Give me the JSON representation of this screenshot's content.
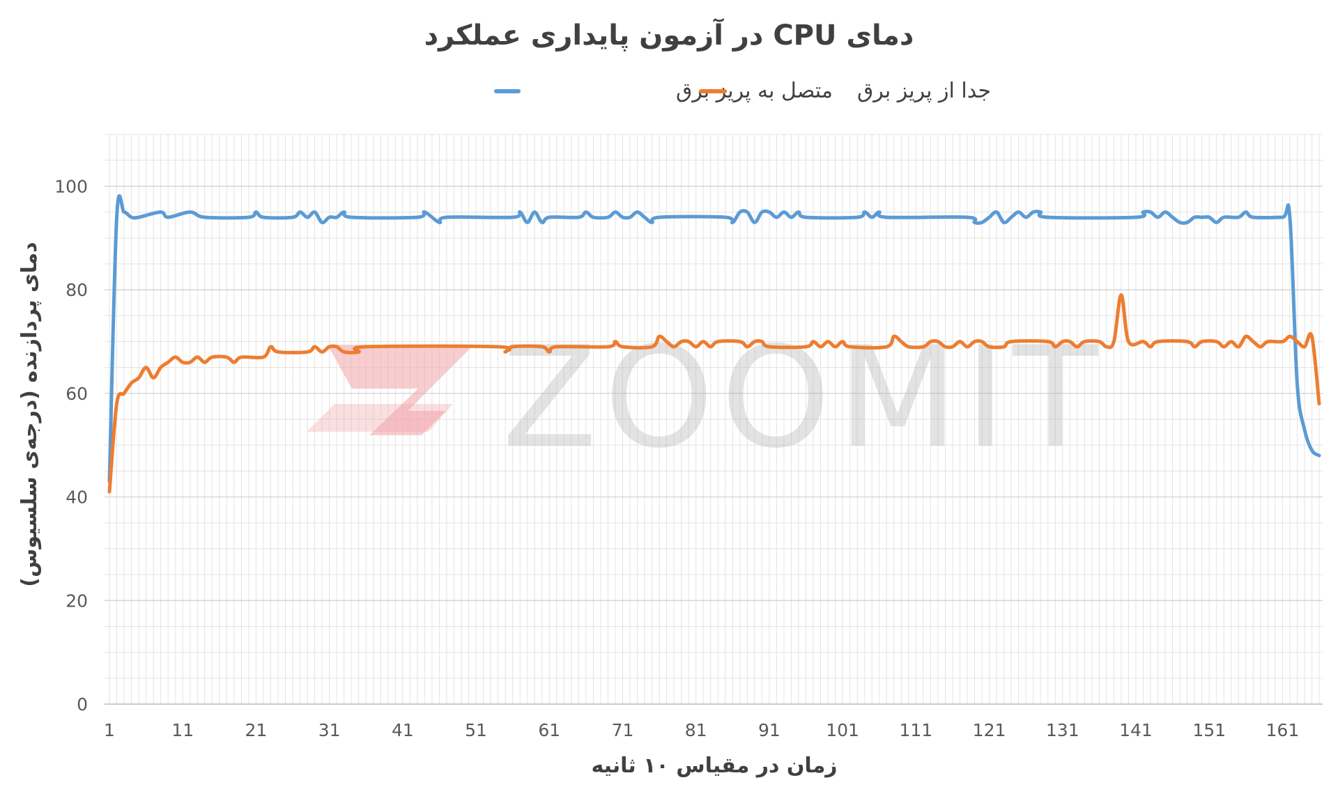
{
  "chart_data": {
    "type": "line",
    "title": "دمای CPU در آزمون پایداری عملکرد",
    "xlabel": "زمان در مقیاس ۱۰ ثانیه",
    "ylabel": "دمای پردازنده (درجه‌ی سلسیوس)",
    "ylim": [
      0,
      110
    ],
    "xlim": [
      1,
      166
    ],
    "yticks": [
      0,
      20,
      40,
      60,
      80,
      100
    ],
    "xticks": [
      1,
      11,
      21,
      31,
      41,
      51,
      61,
      71,
      81,
      91,
      101,
      111,
      121,
      131,
      141,
      151,
      161
    ],
    "grid": true,
    "legend_position": "top",
    "series": [
      {
        "name": "متصل به پریز برق",
        "color": "#5b9bd5",
        "points": [
          [
            1,
            43
          ],
          [
            2,
            94
          ],
          [
            3,
            95
          ],
          [
            4,
            94
          ],
          [
            5,
            94
          ],
          [
            8,
            95
          ],
          [
            9,
            94
          ],
          [
            12,
            95
          ],
          [
            14,
            94
          ],
          [
            20,
            94
          ],
          [
            21,
            95
          ],
          [
            22,
            94
          ],
          [
            26,
            94
          ],
          [
            27,
            95
          ],
          [
            28,
            94
          ],
          [
            29,
            95
          ],
          [
            30,
            93
          ],
          [
            31,
            94
          ],
          [
            32,
            94
          ],
          [
            33,
            95
          ],
          [
            34,
            94
          ],
          [
            43,
            94
          ],
          [
            44,
            95
          ],
          [
            46,
            93
          ],
          [
            47,
            94
          ],
          [
            56,
            94
          ],
          [
            57,
            95
          ],
          [
            58,
            93
          ],
          [
            59,
            95
          ],
          [
            60,
            93
          ],
          [
            61,
            94
          ],
          [
            65,
            94
          ],
          [
            66,
            95
          ],
          [
            67,
            94
          ],
          [
            69,
            94
          ],
          [
            70,
            95
          ],
          [
            71,
            94
          ],
          [
            72,
            94
          ],
          [
            73,
            95
          ],
          [
            74,
            94
          ],
          [
            75,
            93
          ],
          [
            76,
            94
          ],
          [
            85,
            94
          ],
          [
            86,
            93
          ],
          [
            87,
            95
          ],
          [
            88,
            95
          ],
          [
            89,
            93
          ],
          [
            90,
            95
          ],
          [
            91,
            95
          ],
          [
            92,
            94
          ],
          [
            93,
            95
          ],
          [
            94,
            94
          ],
          [
            95,
            95
          ],
          [
            96,
            94
          ],
          [
            103,
            94
          ],
          [
            104,
            95
          ],
          [
            105,
            94
          ],
          [
            106,
            95
          ],
          [
            107,
            94
          ],
          [
            118,
            94
          ],
          [
            119,
            93
          ],
          [
            120,
            93
          ],
          [
            121,
            94
          ],
          [
            122,
            95
          ],
          [
            123,
            93
          ],
          [
            124,
            94
          ],
          [
            125,
            95
          ],
          [
            126,
            94
          ],
          [
            127,
            95
          ],
          [
            128,
            95
          ],
          [
            129,
            94
          ],
          [
            141,
            94
          ],
          [
            142,
            95
          ],
          [
            143,
            95
          ],
          [
            144,
            94
          ],
          [
            145,
            95
          ],
          [
            146,
            94
          ],
          [
            147,
            93
          ],
          [
            148,
            93
          ],
          [
            149,
            94
          ],
          [
            150,
            94
          ],
          [
            151,
            94
          ],
          [
            152,
            93
          ],
          [
            153,
            94
          ],
          [
            155,
            94
          ],
          [
            156,
            95
          ],
          [
            157,
            94
          ],
          [
            161,
            94
          ],
          [
            162,
            94
          ],
          [
            163,
            62
          ],
          [
            164,
            53
          ],
          [
            165,
            49
          ],
          [
            166,
            48
          ]
        ]
      },
      {
        "name": "جدا از پریز برق",
        "color": "#ed7d31",
        "points": [
          [
            1,
            41
          ],
          [
            2,
            58
          ],
          [
            3,
            60
          ],
          [
            4,
            62
          ],
          [
            5,
            63
          ],
          [
            6,
            65
          ],
          [
            7,
            63
          ],
          [
            8,
            65
          ],
          [
            9,
            66
          ],
          [
            10,
            67
          ],
          [
            11,
            66
          ],
          [
            12,
            66
          ],
          [
            13,
            67
          ],
          [
            14,
            66
          ],
          [
            15,
            67
          ],
          [
            17,
            67
          ],
          [
            18,
            66
          ],
          [
            19,
            67
          ],
          [
            22,
            67
          ],
          [
            23,
            69
          ],
          [
            24,
            68
          ],
          [
            28,
            68
          ],
          [
            29,
            69
          ],
          [
            30,
            68
          ],
          [
            31,
            69
          ],
          [
            32,
            69
          ],
          [
            33,
            68
          ],
          [
            35,
            68
          ],
          [
            36,
            69
          ],
          [
            54,
            69
          ],
          [
            55,
            68
          ],
          [
            56,
            69
          ],
          [
            60,
            69
          ],
          [
            61,
            68
          ],
          [
            62,
            69
          ],
          [
            69,
            69
          ],
          [
            70,
            70
          ],
          [
            71,
            69
          ],
          [
            75,
            69
          ],
          [
            76,
            71
          ],
          [
            77,
            70
          ],
          [
            78,
            69
          ],
          [
            79,
            70
          ],
          [
            80,
            70
          ],
          [
            81,
            69
          ],
          [
            82,
            70
          ],
          [
            83,
            69
          ],
          [
            84,
            70
          ],
          [
            87,
            70
          ],
          [
            88,
            69
          ],
          [
            89,
            70
          ],
          [
            90,
            70
          ],
          [
            91,
            69
          ],
          [
            96,
            69
          ],
          [
            97,
            70
          ],
          [
            98,
            69
          ],
          [
            99,
            70
          ],
          [
            100,
            69
          ],
          [
            101,
            70
          ],
          [
            102,
            69
          ],
          [
            107,
            69
          ],
          [
            108,
            71
          ],
          [
            109,
            70
          ],
          [
            110,
            69
          ],
          [
            112,
            69
          ],
          [
            113,
            70
          ],
          [
            114,
            70
          ],
          [
            115,
            69
          ],
          [
            116,
            69
          ],
          [
            117,
            70
          ],
          [
            118,
            69
          ],
          [
            119,
            70
          ],
          [
            120,
            70
          ],
          [
            121,
            69
          ],
          [
            123,
            69
          ],
          [
            124,
            70
          ],
          [
            129,
            70
          ],
          [
            130,
            69
          ],
          [
            131,
            70
          ],
          [
            132,
            70
          ],
          [
            133,
            69
          ],
          [
            134,
            70
          ],
          [
            136,
            70
          ],
          [
            137,
            69
          ],
          [
            138,
            70
          ],
          [
            139,
            79
          ],
          [
            140,
            70
          ],
          [
            142,
            70
          ],
          [
            143,
            69
          ],
          [
            144,
            70
          ],
          [
            148,
            70
          ],
          [
            149,
            69
          ],
          [
            150,
            70
          ],
          [
            152,
            70
          ],
          [
            153,
            69
          ],
          [
            154,
            70
          ],
          [
            155,
            69
          ],
          [
            156,
            71
          ],
          [
            157,
            70
          ],
          [
            158,
            69
          ],
          [
            159,
            70
          ],
          [
            161,
            70
          ],
          [
            162,
            71
          ],
          [
            163,
            70
          ],
          [
            164,
            69
          ],
          [
            165,
            71
          ],
          [
            166,
            58
          ]
        ]
      }
    ]
  },
  "watermark": {
    "text": "ZOOMIT",
    "logo_color": "#f2a4a9",
    "text_color": "#b0b0b0"
  }
}
